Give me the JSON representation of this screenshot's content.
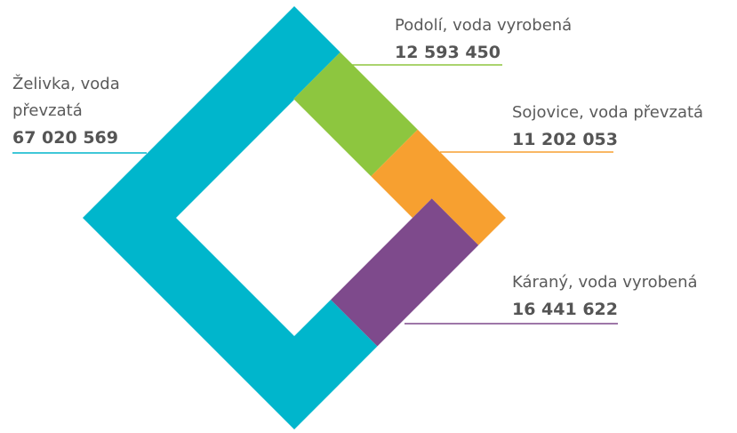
{
  "chart_data": {
    "type": "diamond",
    "categories": [
      "Podolí, voda vyrobená",
      "Sojovice, voda převzatá",
      "Káraný, voda vyrobená",
      "Želivka, voda převzatá"
    ],
    "values": [
      12593450,
      11202053,
      16441622,
      67020569
    ],
    "value_labels": [
      "12 593 450",
      "11 202 053",
      "16 441 622",
      "67 020 569"
    ],
    "colors": [
      "#8dc63f",
      "#f7a030",
      "#7e4a8c",
      "#00b6cc"
    ]
  }
}
